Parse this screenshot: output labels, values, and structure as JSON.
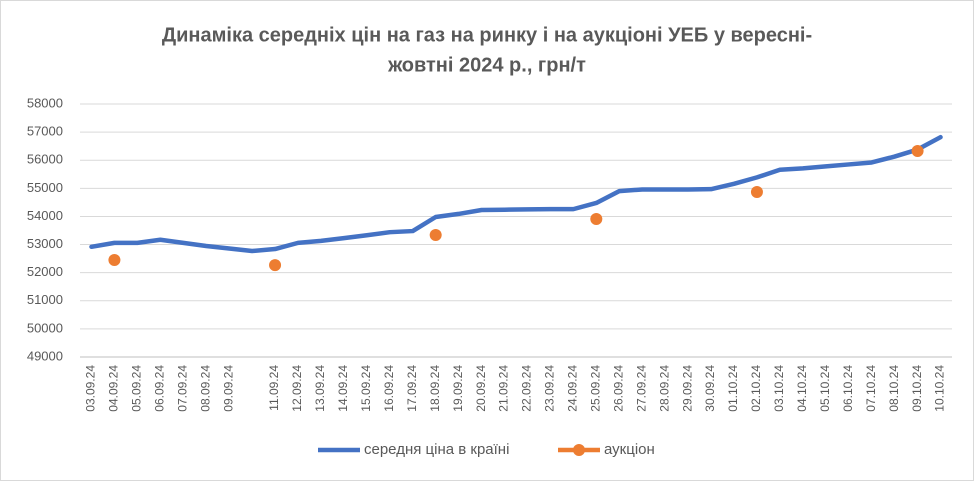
{
  "chart_data": {
    "type": "line",
    "title": [
      "Динаміка середніх цін на газ на ринку і на аукціоні УЕБ у вересні-",
      "жовтні 2024 р., грн/т"
    ],
    "categories": [
      "03.09.24",
      "04.09.24",
      "05.09.24",
      "06.09.24",
      "07.09.24",
      "08.09.24",
      "09.09.24",
      null,
      "11.09.24",
      "12.09.24",
      "13.09.24",
      "14.09.24",
      "15.09.24",
      "16.09.24",
      "17.09.24",
      "18.09.24",
      "19.09.24",
      "20.09.24",
      "21.09.24",
      "22.09.24",
      "23.09.24",
      "24.09.24",
      "25.09.24",
      "26.09.24",
      "27.09.24",
      "28.09.24",
      "29.09.24",
      "30.09.24",
      "01.10.24",
      "02.10.24",
      "03.10.24",
      "04.10.24",
      "05.10.24",
      "06.10.24",
      "07.10.24",
      "08.10.24",
      "09.10.24",
      "10.10.24"
    ],
    "series": [
      {
        "name": "середня ціна в країні",
        "color": "#4472c4",
        "style": "line",
        "values": [
          52920,
          53060,
          53060,
          53170,
          53060,
          52950,
          52860,
          52770,
          52840,
          53060,
          53130,
          53230,
          53330,
          53440,
          53480,
          53980,
          54090,
          54230,
          54240,
          54250,
          54260,
          54260,
          54480,
          54900,
          54960,
          54960,
          54960,
          54970,
          55160,
          55390,
          55660,
          55710,
          55780,
          55850,
          55920,
          56130,
          56380,
          56820
        ]
      },
      {
        "name": "аукціон",
        "color": "#ed7d31",
        "style": "markers",
        "values": [
          null,
          52450,
          null,
          null,
          null,
          null,
          null,
          null,
          52270,
          null,
          null,
          null,
          null,
          null,
          null,
          53340,
          null,
          null,
          null,
          null,
          null,
          null,
          53910,
          null,
          null,
          null,
          null,
          null,
          null,
          54870,
          null,
          null,
          null,
          null,
          null,
          null,
          56330,
          null
        ]
      }
    ],
    "ylim": [
      49000,
      58000
    ],
    "yticks": [
      49000,
      50000,
      51000,
      52000,
      53000,
      54000,
      55000,
      56000,
      57000,
      58000
    ],
    "grid": true,
    "legend": "bottom"
  }
}
